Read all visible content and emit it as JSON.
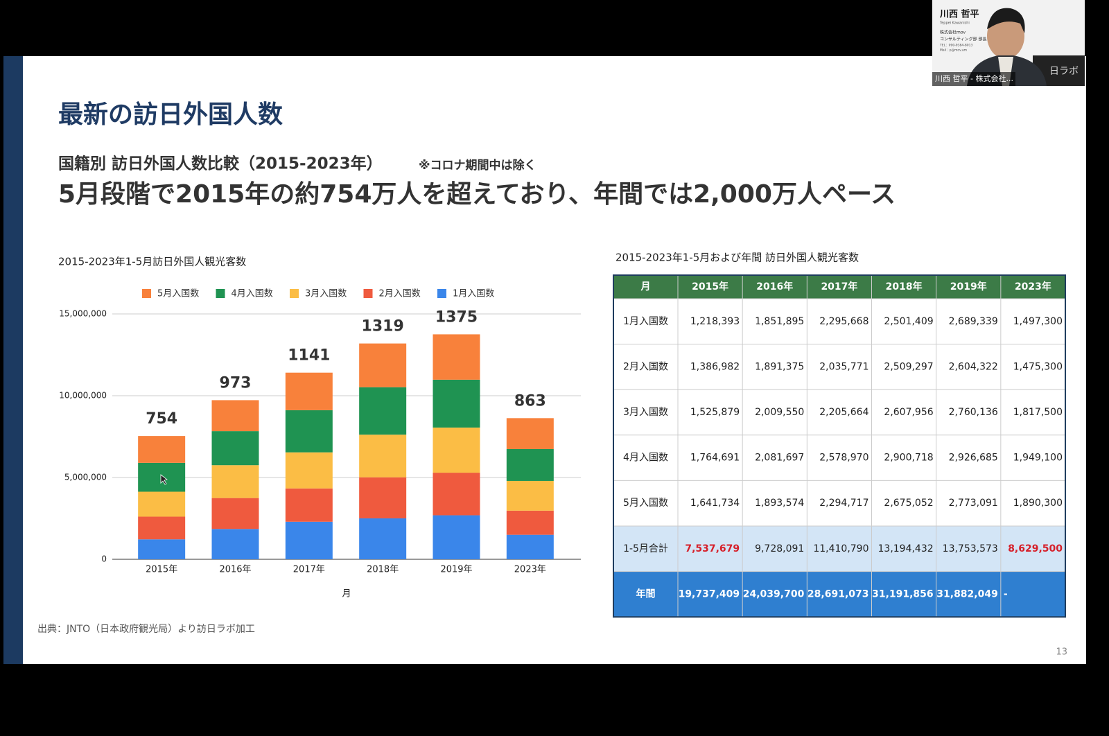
{
  "meeting": {
    "participant": {
      "name": "川西 哲平",
      "romaji": "Teppei Kawanishi",
      "company": "株式会社mov",
      "dept": "コンサルティング部 部長",
      "tel": "TEL：090-9384-8013",
      "mail": "Mail：p@mov.am",
      "tag": "川西 哲平 - 株式会社...",
      "brand": "日ラボ"
    }
  },
  "slide": {
    "title": "最新の訪日外国人数",
    "subtitle": "国籍別 訪日外国人数比較（2015-2023年）",
    "note": "※コロナ期間中は除く",
    "headline": "5月段階で2015年の約754万人を超えており、年間では2,000万人ペース",
    "source": "出典：JNTO（日本政府観光局）より訪日ラボ加工",
    "page": "13"
  },
  "chart_data": {
    "type": "stacked_bar",
    "title": "2015-2023年1-5月訪日外国人観光客数",
    "x_label": "月",
    "categories": [
      "2015年",
      "2016年",
      "2017年",
      "2018年",
      "2019年",
      "2023年"
    ],
    "series": [
      {
        "name": "5月入国数",
        "color": "#f8813b",
        "values": [
          1641734,
          1893574,
          2294717,
          2675052,
          2773091,
          1890300
        ]
      },
      {
        "name": "4月入国数",
        "color": "#1f9352",
        "values": [
          1764691,
          2081697,
          2578970,
          2900718,
          2926685,
          1949100
        ]
      },
      {
        "name": "3月入国数",
        "color": "#fbbd45",
        "values": [
          1525879,
          2009550,
          2205664,
          2607956,
          2760136,
          1817500
        ]
      },
      {
        "name": "2月入国数",
        "color": "#ef5a3e",
        "values": [
          1386982,
          1891375,
          2035771,
          2509297,
          2604322,
          1475300
        ]
      },
      {
        "name": "1月入国数",
        "color": "#3a86ea",
        "values": [
          1218393,
          1851895,
          2295668,
          2501409,
          2689339,
          1497300
        ]
      }
    ],
    "annotations": [
      "754",
      "973",
      "1141",
      "1319",
      "1375",
      "863"
    ],
    "ylim": [
      0,
      15000000
    ],
    "yticks": [
      0,
      {
        "value": 5000000,
        "label": "5,000,000"
      },
      {
        "value": 10000000,
        "label": "10,000,000"
      },
      {
        "value": 15000000,
        "label": "15,000,000"
      }
    ],
    "grid": true,
    "legend": "top"
  },
  "table": {
    "title": "2015-2023年1-5月および年間 訪日外国人観光客数",
    "header": [
      "月",
      "2015年",
      "2016年",
      "2017年",
      "2018年",
      "2019年",
      "2023年"
    ],
    "header_color": "#3c7b47",
    "total_color": "#d3e5f6",
    "annual_color": "#2f7fd0",
    "emphasis_color": "#d6202a",
    "rows": [
      {
        "kind": "body",
        "label": "1月入国数",
        "cells": [
          "1,218,393",
          "1,851,895",
          "2,295,668",
          "2,501,409",
          "2,689,339",
          "1,497,300"
        ]
      },
      {
        "kind": "body",
        "label": "2月入国数",
        "cells": [
          "1,386,982",
          "1,891,375",
          "2,035,771",
          "2,509,297",
          "2,604,322",
          "1,475,300"
        ]
      },
      {
        "kind": "body",
        "label": "3月入国数",
        "cells": [
          "1,525,879",
          "2,009,550",
          "2,205,664",
          "2,607,956",
          "2,760,136",
          "1,817,500"
        ]
      },
      {
        "kind": "body",
        "label": "4月入国数",
        "cells": [
          "1,764,691",
          "2,081,697",
          "2,578,970",
          "2,900,718",
          "2,926,685",
          "1,949,100"
        ]
      },
      {
        "kind": "body",
        "label": "5月入国数",
        "cells": [
          "1,641,734",
          "1,893,574",
          "2,294,717",
          "2,675,052",
          "2,773,091",
          "1,890,300"
        ]
      },
      {
        "kind": "total",
        "label": "1-5月合計",
        "cells": [
          "7,537,679",
          "9,728,091",
          "11,410,790",
          "13,194,432",
          "13,753,573",
          "8,629,500"
        ],
        "emphasized": [
          0,
          5
        ]
      },
      {
        "kind": "annual",
        "label": "年間",
        "cells": [
          "19,737,409",
          "24,039,700",
          "28,691,073",
          "31,191,856",
          "31,882,049",
          "-"
        ]
      }
    ]
  }
}
